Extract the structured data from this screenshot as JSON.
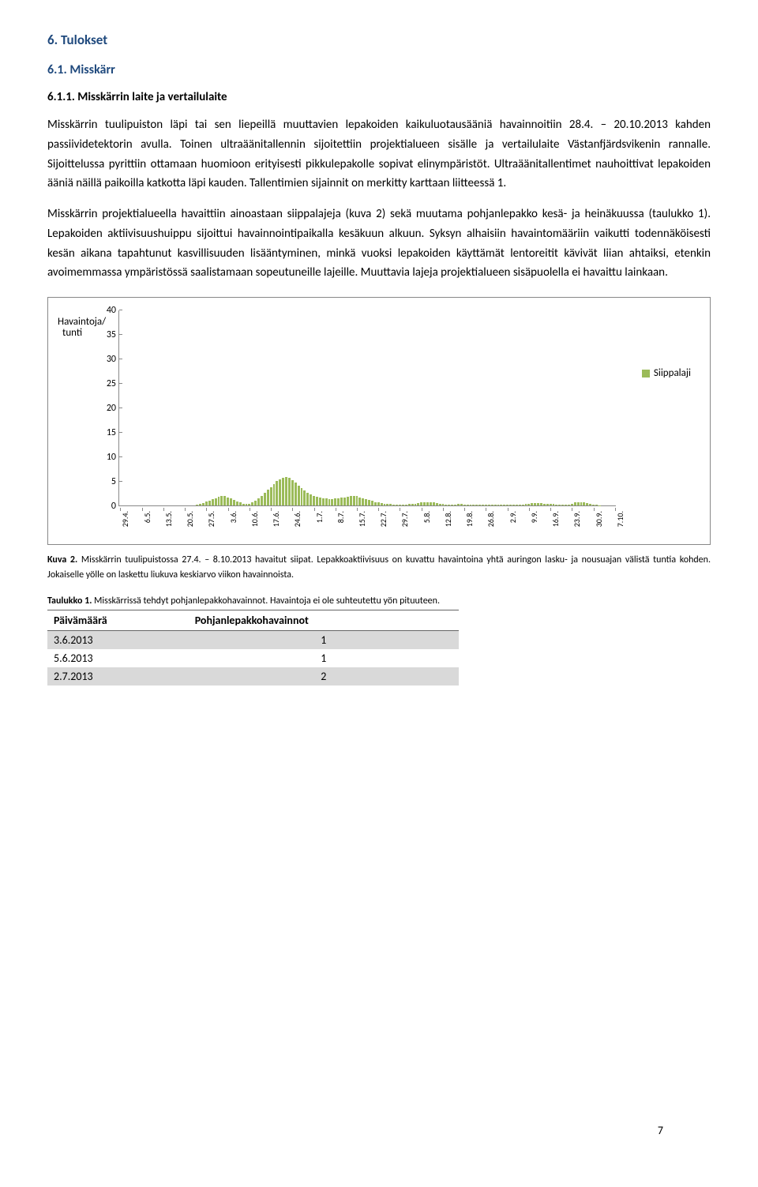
{
  "headings": {
    "h1": "6.  Tulokset",
    "h2": "6.1.  Misskärr",
    "h3": "6.1.1.  Misskärrin laite ja vertailulaite"
  },
  "paragraphs": {
    "p1": "Misskärrin tuulipuiston läpi tai sen liepeillä muuttavien lepakoiden kaikuluotausääniä havainnoitiin 28.4. – 20.10.2013 kahden passiividetektorin avulla. Toinen ultraäänitallennin sijoitettiin projektialueen sisälle ja vertailulaite Västanfjärdsvikenin rannalle. Sijoittelussa pyrittiin ottamaan huomioon erityisesti pikkulepakolle sopivat elinympäristöt. Ultraäänitallentimet nauhoittivat lepakoiden ääniä näillä paikoilla katkotta läpi kauden. Tallentimien sijainnit on merkitty karttaan liitteessä 1.",
    "p2": "Misskärrin projektialueella havaittiin ainoastaan siippalajeja (kuva 2) sekä muutama pohjanlepakko kesä- ja heinäkuussa (taulukko 1). Lepakoiden aktiivisuushuippu sijoittui havainnointipaikalla kesäkuun alkuun. Syksyn alhaisiin havaintomääriin vaikutti todennäköisesti kesän aikana tapahtunut kasvillisuuden lisääntyminen, minkä vuoksi lepakoiden käyttämät lentoreitit kävivät liian ahtaiksi, etenkin avoimemmassa ympäristössä saalistamaan sopeutuneille lajeille. Muuttavia lajeja projektialueen sisäpuolella ei havaittu lainkaan."
  },
  "chart": {
    "type": "bar",
    "y_title_l1": "Havaintoja/",
    "y_title_l2": "tunti",
    "ylim": [
      0,
      40
    ],
    "ytick_step": 5,
    "yticks": [
      0,
      5,
      10,
      15,
      20,
      25,
      30,
      35,
      40
    ],
    "bar_color": "#9bbb59",
    "border_color": "#888888",
    "text_color": "#000000",
    "legend_label": "Siippalaji",
    "categories": [
      "29.4.",
      "6.5.",
      "13.5.",
      "20.5.",
      "27.5.",
      "3.6.",
      "10.6.",
      "17.6.",
      "24.6.",
      "1.7.",
      "8.7.",
      "15.7.",
      "22.7.",
      "29.7.",
      "5.8.",
      "12.8.",
      "19.8.",
      "26.8.",
      "2.9.",
      "9.9.",
      "16.9.",
      "23.9.",
      "30.9.",
      "7.10."
    ],
    "tick_every_days": 7,
    "values": [
      0,
      0,
      0,
      0,
      0,
      0,
      0,
      0,
      0,
      0,
      0,
      0,
      0,
      0,
      0,
      0,
      0,
      0,
      0,
      0,
      0,
      0,
      0,
      0,
      0,
      0.2,
      0.3,
      0.5,
      0.8,
      1.0,
      1.3,
      1.5,
      1.8,
      2.0,
      1.9,
      1.7,
      1.4,
      1.1,
      0.8,
      0.6,
      0.4,
      0.3,
      0.4,
      0.6,
      1.0,
      1.5,
      2.0,
      2.6,
      3.2,
      3.8,
      4.4,
      5.0,
      5.4,
      5.7,
      5.8,
      5.6,
      5.2,
      4.7,
      4.1,
      3.5,
      3.0,
      2.6,
      2.3,
      2.0,
      1.8,
      1.6,
      1.5,
      1.4,
      1.3,
      1.3,
      1.4,
      1.5,
      1.6,
      1.7,
      1.8,
      1.9,
      2.0,
      1.9,
      1.7,
      1.5,
      1.3,
      1.1,
      0.9,
      0.7,
      0.6,
      0.5,
      0.4,
      0.3,
      0.25,
      0.2,
      0.2,
      0.2,
      0.2,
      0.2,
      0.25,
      0.3,
      0.4,
      0.5,
      0.6,
      0.7,
      0.7,
      0.7,
      0.6,
      0.5,
      0.4,
      0.3,
      0.2,
      0.15,
      0.15,
      0.2,
      0.25,
      0.25,
      0.2,
      0.15,
      0.1,
      0.1,
      0.1,
      0.1,
      0.1,
      0.1,
      0.1,
      0.1,
      0.1,
      0.1,
      0.1,
      0.1,
      0.1,
      0.1,
      0.1,
      0.1,
      0.1,
      0.2,
      0.3,
      0.4,
      0.5,
      0.5,
      0.5,
      0.45,
      0.4,
      0.35,
      0.3,
      0.25,
      0.2,
      0.15,
      0.1,
      0.1,
      0.2,
      0.4,
      0.6,
      0.7,
      0.7,
      0.6,
      0.5,
      0.3,
      0.2,
      0.1,
      0.05,
      0,
      0,
      0,
      0,
      0
    ]
  },
  "caption2": {
    "bold": "Kuva 2.",
    "rest": " Misskärrin tuulipuistossa 27.4. – 8.10.2013 havaitut siipat. Lepakkoaktiivisuus on kuvattu havaintoina yhtä auringon lasku- ja nousuajan välistä tuntia kohden. Jokaiselle yölle on laskettu liukuva keskiarvo viikon havainnoista."
  },
  "table1": {
    "caption_bold": "Taulukko 1.",
    "caption_rest": " Misskärrissä tehdyt pohjanlepakkohavainnot. Havaintoja ei ole suhteutettu yön pituuteen.",
    "columns": [
      "Päivämäärä",
      "Pohjanlepakkohavainnot"
    ],
    "rows": [
      [
        "3.6.2013",
        "1"
      ],
      [
        "5.6.2013",
        "1"
      ],
      [
        "2.7.2013",
        "2"
      ]
    ]
  },
  "page_number": "7",
  "colors": {
    "heading": "#1f497d",
    "shade": "#d9d9d9"
  }
}
